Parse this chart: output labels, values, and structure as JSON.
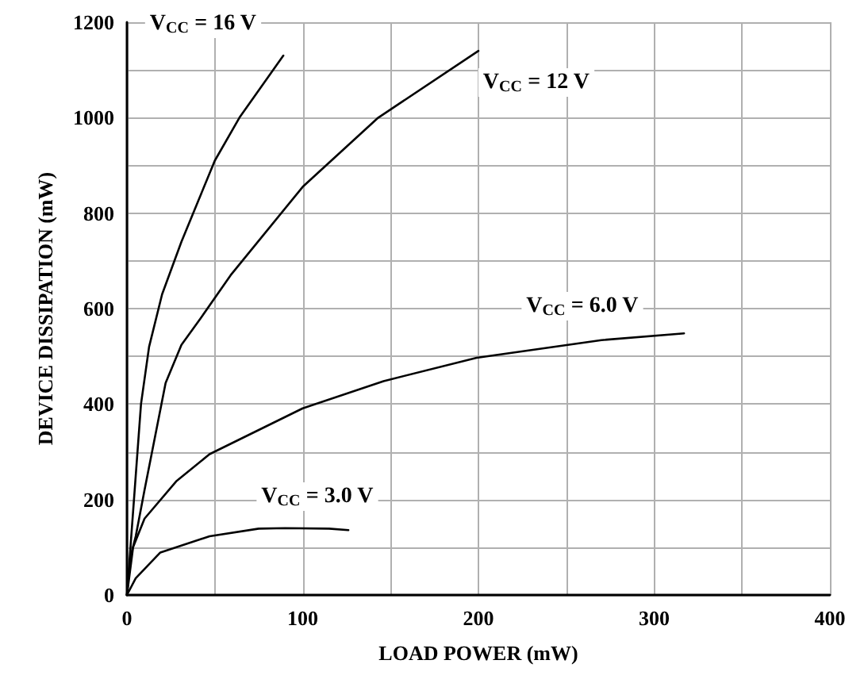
{
  "chart_data": {
    "type": "line",
    "xlabel": "LOAD POWER (mW)",
    "ylabel": "DEVICE DISSIPATION (mW)",
    "xlim": [
      0,
      400
    ],
    "xticks": [
      0,
      {
        "value": 50,
        "label": null
      },
      100,
      {
        "value": 150,
        "label": null
      },
      200,
      {
        "value": 250,
        "label": null
      },
      300,
      {
        "value": 350,
        "label": null
      },
      400
    ],
    "ylim": [
      0,
      1200
    ],
    "yticks": [
      0,
      {
        "value": 100,
        "label": null
      },
      200,
      {
        "value": 300,
        "label": null
      },
      400,
      {
        "value": 500,
        "label": null
      },
      600,
      {
        "value": 700,
        "label": null
      },
      800,
      {
        "value": 900,
        "label": null
      },
      1000,
      {
        "value": 1100,
        "label": null
      },
      1200
    ],
    "grid": true,
    "marker": "none",
    "line_style": "solid",
    "series": [
      {
        "color": "#000000",
        "x": [
          0,
          2,
          5,
          8,
          12.6,
          20,
          31,
          50,
          64,
          89
        ],
        "values": [
          0,
          100,
          250,
          400,
          520,
          630,
          740,
          910,
          1000,
          1130
        ]
      },
      {
        "color": "#000000",
        "x": [
          0,
          2,
          5,
          10,
          22,
          31,
          42,
          59,
          100,
          143,
          200
        ],
        "values": [
          0,
          80,
          123,
          220,
          444,
          524,
          580,
          670,
          855,
          1000,
          1140
        ]
      },
      {
        "color": "#000000",
        "x": [
          0,
          3.5,
          10,
          28,
          47,
          100,
          146,
          199,
          270,
          317
        ],
        "values": [
          0,
          100,
          160,
          238,
          295,
          391,
          448,
          497,
          534,
          548
        ]
      },
      {
        "color": "#000000",
        "x": [
          0,
          5,
          19,
          47,
          75,
          90,
          115,
          126
        ],
        "values": [
          0,
          35,
          89,
          123,
          139,
          140,
          139,
          136
        ]
      }
    ],
    "annotations": [
      "V$_{CC}$ = 16 V",
      "V$_{CC}$ = 12 V",
      "V$_{CC}$ = 6.0 V",
      "V$_{CC}$ = 3.0 V"
    ]
  }
}
